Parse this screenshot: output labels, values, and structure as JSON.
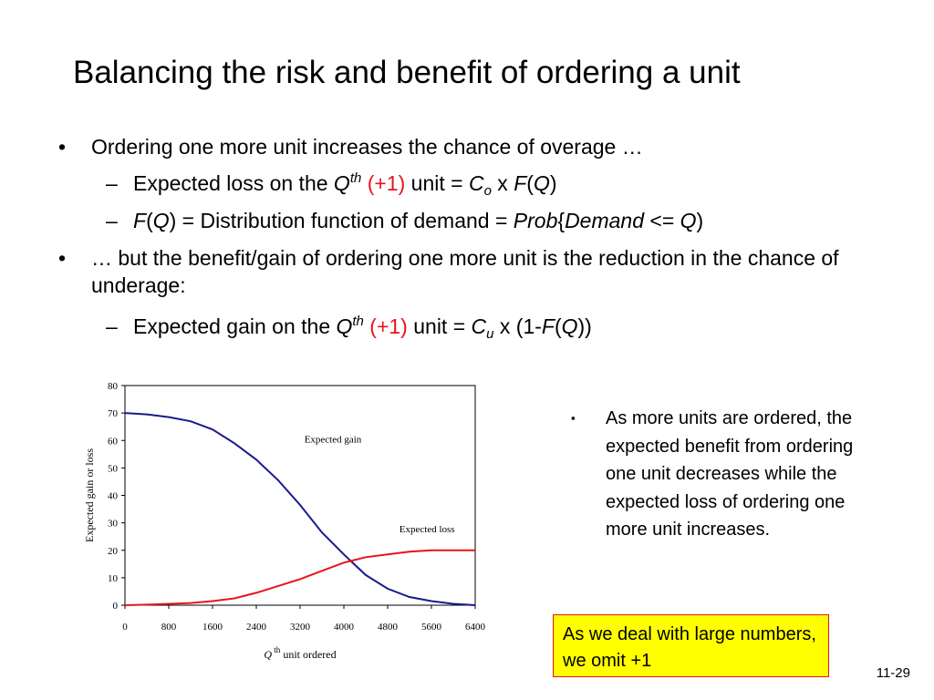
{
  "slide": {
    "title": "Balancing the risk and benefit of ordering a unit",
    "page_number": "11-29",
    "bullet_mark": "•",
    "dash_mark": "–",
    "square_mark": "▪"
  },
  "bullets": [
    {
      "text": "Ordering one more unit increases the chance of overage …"
    },
    {
      "text": "… but the benefit/gain of ordering one more unit is the reduction in the chance of underage:"
    }
  ],
  "subs": {
    "s1": {
      "prefix": "Expected loss on the ",
      "q": "Q",
      "th": "th",
      "plus1": "(+1)",
      "mid": " unit = ",
      "c": "C",
      "c_sub": "o",
      "x": " x ",
      "f": "F",
      "lp": "(",
      "q2": "Q",
      "rp": ")"
    },
    "s2": {
      "f": "F",
      "lp": "(",
      "q": "Q",
      "rp_eq": ") = Distribution function of demand = ",
      "prob": "Prob",
      "lb": "{",
      "demand": "Demand",
      "le": " <= ",
      "q2": "Q",
      "rb": ")"
    },
    "s3": {
      "prefix": "Expected gain on the ",
      "q": "Q",
      "th": "th",
      "plus1": "(+1)",
      "mid": " unit = ",
      "c": "C",
      "c_sub": "u",
      "x": " x (1-",
      "f": "F",
      "lp": "(",
      "q2": "Q",
      "rp": "))"
    }
  },
  "side_note": "As more units are ordered, the expected benefit from ordering one unit decreases while the expected loss of ordering one more unit increases.",
  "highlight_box": "As we deal with large numbers, we omit +1",
  "chart_data": {
    "type": "line",
    "ylabel": "Expected gain or loss",
    "xlabel_q": "Q",
    "xlabel_sup": "th",
    "xlabel_rest": " unit ordered",
    "xlim": [
      0,
      6400
    ],
    "ylim": [
      0,
      80
    ],
    "xticks": [
      0,
      800,
      1600,
      2400,
      3200,
      4000,
      4800,
      5600,
      6400
    ],
    "yticks": [
      0,
      10,
      20,
      30,
      40,
      50,
      60,
      70,
      80
    ],
    "grid": false,
    "annotations": [
      "Expected gain",
      "Expected loss"
    ],
    "x": [
      0,
      400,
      800,
      1200,
      1600,
      2000,
      2400,
      2800,
      3200,
      3600,
      4000,
      4400,
      4800,
      5200,
      5600,
      6000,
      6400
    ],
    "series": [
      {
        "color": "#1a1a8c",
        "values": [
          70,
          69.5,
          68.5,
          67,
          64,
          59,
          53,
          45.5,
          36.5,
          26.5,
          18.5,
          11,
          6,
          3,
          1.5,
          0.5,
          0
        ]
      },
      {
        "color": "#e8141b",
        "values": [
          0,
          0.2,
          0.5,
          0.8,
          1.5,
          2.5,
          4.5,
          7,
          9.5,
          12.5,
          15.5,
          17.5,
          18.5,
          19.5,
          20,
          20,
          20
        ]
      }
    ]
  }
}
